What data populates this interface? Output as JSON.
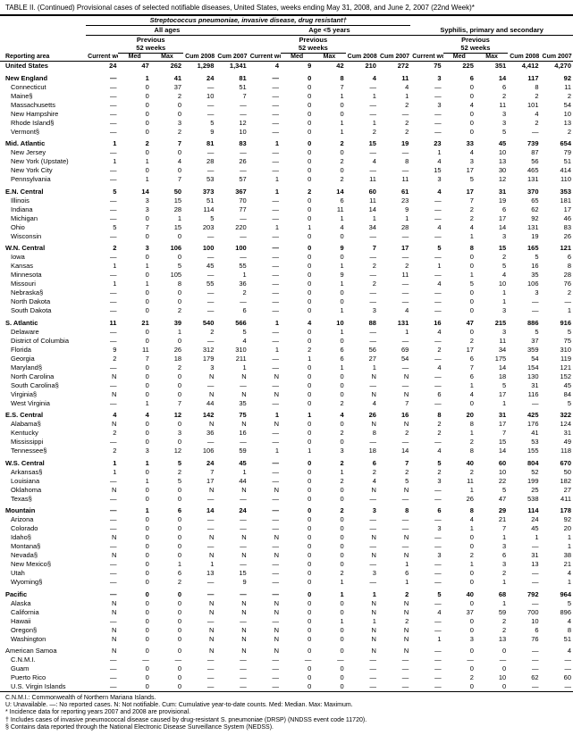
{
  "title": "TABLE II. (Continued) Provisional cases of selected notifiable diseases, United States, weeks ending May 31, 2008, and June 2, 2007 (22nd Week)*",
  "section1_title": "Streptococcus pneumoniae, invasive disease, drug resistant†",
  "sub_allages": "All ages",
  "sub_under5": "Age <5 years",
  "section2_title": "Syphilis, primary and secondary",
  "prev_label": "Previous",
  "weeks_label": "52 weeks",
  "col_area": "Reporting area",
  "col_current": "Current week",
  "col_med": "Med",
  "col_max": "Max",
  "col_cum08": "Cum 2008",
  "col_cum07": "Cum 2007",
  "footnotes": [
    "C.N.M.I.: Commonwealth of Northern Mariana Islands.",
    "U: Unavailable.   —: No reported cases.   N: Not notifiable.   Cum: Cumulative year-to-date counts.   Med: Median.   Max: Maximum.",
    "* Incidence data for reporting years 2007 and 2008 are provisional.",
    "† Includes cases of invasive pneumococcal disease caused by drug-resistant S. pneumoniae (DRSP) (NNDSS event code 11720).",
    "§ Contains data reported through the National Electronic Disease Surveillance System (NEDSS)."
  ],
  "rows": [
    {
      "area": "United States",
      "bold": true,
      "group": true,
      "v": [
        "24",
        "47",
        "262",
        "1,298",
        "1,341",
        "4",
        "9",
        "42",
        "210",
        "272",
        "75",
        "225",
        "351",
        "4,412",
        "4,270"
      ]
    },
    {
      "area": "New England",
      "bold": true,
      "group": true,
      "v": [
        "—",
        "1",
        "41",
        "24",
        "81",
        "—",
        "0",
        "8",
        "4",
        "11",
        "3",
        "6",
        "14",
        "117",
        "92"
      ]
    },
    {
      "area": "Connecticut",
      "v": [
        "—",
        "0",
        "37",
        "—",
        "51",
        "—",
        "0",
        "7",
        "—",
        "4",
        "—",
        "0",
        "6",
        "8",
        "11"
      ]
    },
    {
      "area": "Maine§",
      "v": [
        "—",
        "0",
        "2",
        "10",
        "7",
        "—",
        "0",
        "1",
        "1",
        "1",
        "—",
        "0",
        "2",
        "2",
        "2"
      ]
    },
    {
      "area": "Massachusetts",
      "v": [
        "—",
        "0",
        "0",
        "—",
        "—",
        "—",
        "0",
        "0",
        "—",
        "2",
        "3",
        "4",
        "11",
        "101",
        "54"
      ]
    },
    {
      "area": "New Hampshire",
      "v": [
        "—",
        "0",
        "0",
        "—",
        "—",
        "—",
        "0",
        "0",
        "—",
        "—",
        "—",
        "0",
        "3",
        "4",
        "10"
      ]
    },
    {
      "area": "Rhode Island§",
      "v": [
        "—",
        "0",
        "3",
        "5",
        "12",
        "—",
        "0",
        "1",
        "1",
        "2",
        "—",
        "0",
        "3",
        "2",
        "13"
      ]
    },
    {
      "area": "Vermont§",
      "v": [
        "—",
        "0",
        "2",
        "9",
        "10",
        "—",
        "0",
        "1",
        "2",
        "2",
        "—",
        "0",
        "5",
        "—",
        "2"
      ]
    },
    {
      "area": "Mid. Atlantic",
      "bold": true,
      "group": true,
      "v": [
        "1",
        "2",
        "7",
        "81",
        "83",
        "1",
        "0",
        "2",
        "15",
        "19",
        "23",
        "33",
        "45",
        "739",
        "654"
      ]
    },
    {
      "area": "New Jersey",
      "v": [
        "—",
        "0",
        "0",
        "—",
        "—",
        "—",
        "0",
        "0",
        "—",
        "—",
        "1",
        "4",
        "10",
        "87",
        "79"
      ]
    },
    {
      "area": "New York (Upstate)",
      "v": [
        "1",
        "1",
        "4",
        "28",
        "26",
        "—",
        "0",
        "2",
        "4",
        "8",
        "4",
        "3",
        "13",
        "56",
        "51"
      ]
    },
    {
      "area": "New York City",
      "v": [
        "—",
        "0",
        "0",
        "—",
        "—",
        "—",
        "0",
        "0",
        "—",
        "—",
        "15",
        "17",
        "30",
        "465",
        "414"
      ]
    },
    {
      "area": "Pennsylvania",
      "v": [
        "—",
        "1",
        "7",
        "53",
        "57",
        "1",
        "0",
        "2",
        "11",
        "11",
        "3",
        "5",
        "12",
        "131",
        "110"
      ]
    },
    {
      "area": "E.N. Central",
      "bold": true,
      "group": true,
      "v": [
        "5",
        "14",
        "50",
        "373",
        "367",
        "1",
        "2",
        "14",
        "60",
        "61",
        "4",
        "17",
        "31",
        "370",
        "353"
      ]
    },
    {
      "area": "Illinois",
      "v": [
        "—",
        "3",
        "15",
        "51",
        "70",
        "—",
        "0",
        "6",
        "11",
        "23",
        "—",
        "7",
        "19",
        "65",
        "181"
      ]
    },
    {
      "area": "Indiana",
      "v": [
        "—",
        "3",
        "28",
        "114",
        "77",
        "—",
        "0",
        "11",
        "14",
        "9",
        "—",
        "2",
        "6",
        "62",
        "17"
      ]
    },
    {
      "area": "Michigan",
      "v": [
        "—",
        "0",
        "1",
        "5",
        "—",
        "—",
        "0",
        "1",
        "1",
        "1",
        "—",
        "2",
        "17",
        "92",
        "46"
      ]
    },
    {
      "area": "Ohio",
      "v": [
        "5",
        "7",
        "15",
        "203",
        "220",
        "1",
        "1",
        "4",
        "34",
        "28",
        "4",
        "4",
        "14",
        "131",
        "83"
      ]
    },
    {
      "area": "Wisconsin",
      "v": [
        "—",
        "0",
        "0",
        "—",
        "—",
        "—",
        "0",
        "0",
        "—",
        "—",
        "—",
        "1",
        "3",
        "19",
        "26"
      ]
    },
    {
      "area": "W.N. Central",
      "bold": true,
      "group": true,
      "v": [
        "2",
        "3",
        "106",
        "100",
        "100",
        "—",
        "0",
        "9",
        "7",
        "17",
        "5",
        "8",
        "15",
        "165",
        "121"
      ]
    },
    {
      "area": "Iowa",
      "v": [
        "—",
        "0",
        "0",
        "—",
        "—",
        "—",
        "0",
        "0",
        "—",
        "—",
        "—",
        "0",
        "2",
        "5",
        "6"
      ]
    },
    {
      "area": "Kansas",
      "v": [
        "1",
        "1",
        "5",
        "45",
        "55",
        "—",
        "0",
        "1",
        "2",
        "2",
        "1",
        "0",
        "5",
        "16",
        "8"
      ]
    },
    {
      "area": "Minnesota",
      "v": [
        "—",
        "0",
        "105",
        "—",
        "1",
        "—",
        "0",
        "9",
        "—",
        "11",
        "—",
        "1",
        "4",
        "35",
        "28"
      ]
    },
    {
      "area": "Missouri",
      "v": [
        "1",
        "1",
        "8",
        "55",
        "36",
        "—",
        "0",
        "1",
        "2",
        "—",
        "4",
        "5",
        "10",
        "106",
        "76"
      ]
    },
    {
      "area": "Nebraska§",
      "v": [
        "—",
        "0",
        "0",
        "—",
        "2",
        "—",
        "0",
        "0",
        "—",
        "—",
        "—",
        "0",
        "1",
        "3",
        "2"
      ]
    },
    {
      "area": "North Dakota",
      "v": [
        "—",
        "0",
        "0",
        "—",
        "—",
        "—",
        "0",
        "0",
        "—",
        "—",
        "—",
        "0",
        "1",
        "—",
        "—"
      ]
    },
    {
      "area": "South Dakota",
      "v": [
        "—",
        "0",
        "2",
        "—",
        "6",
        "—",
        "0",
        "1",
        "3",
        "4",
        "—",
        "0",
        "3",
        "—",
        "1"
      ]
    },
    {
      "area": "S. Atlantic",
      "bold": true,
      "group": true,
      "v": [
        "11",
        "21",
        "39",
        "540",
        "566",
        "1",
        "4",
        "10",
        "88",
        "131",
        "16",
        "47",
        "215",
        "886",
        "916"
      ]
    },
    {
      "area": "Delaware",
      "v": [
        "—",
        "0",
        "1",
        "2",
        "5",
        "—",
        "0",
        "1",
        "—",
        "1",
        "4",
        "0",
        "3",
        "5",
        "5"
      ]
    },
    {
      "area": "District of Columbia",
      "v": [
        "—",
        "0",
        "0",
        "—",
        "4",
        "—",
        "0",
        "0",
        "—",
        "—",
        "—",
        "2",
        "11",
        "37",
        "75"
      ]
    },
    {
      "area": "Florida",
      "v": [
        "9",
        "11",
        "26",
        "312",
        "310",
        "1",
        "2",
        "6",
        "56",
        "69",
        "2",
        "17",
        "34",
        "359",
        "310"
      ]
    },
    {
      "area": "Georgia",
      "v": [
        "2",
        "7",
        "18",
        "179",
        "211",
        "—",
        "1",
        "6",
        "27",
        "54",
        "—",
        "6",
        "175",
        "54",
        "119"
      ]
    },
    {
      "area": "Maryland§",
      "v": [
        "—",
        "0",
        "2",
        "3",
        "1",
        "—",
        "0",
        "1",
        "1",
        "—",
        "4",
        "7",
        "14",
        "154",
        "121"
      ]
    },
    {
      "area": "North Carolina",
      "v": [
        "N",
        "0",
        "0",
        "N",
        "N",
        "N",
        "0",
        "0",
        "N",
        "N",
        "—",
        "6",
        "18",
        "130",
        "152"
      ]
    },
    {
      "area": "South Carolina§",
      "v": [
        "—",
        "0",
        "0",
        "—",
        "—",
        "—",
        "0",
        "0",
        "—",
        "—",
        "—",
        "1",
        "5",
        "31",
        "45"
      ]
    },
    {
      "area": "Virginia§",
      "v": [
        "N",
        "0",
        "0",
        "N",
        "N",
        "N",
        "0",
        "0",
        "N",
        "N",
        "6",
        "4",
        "17",
        "116",
        "84"
      ]
    },
    {
      "area": "West Virginia",
      "v": [
        "—",
        "1",
        "7",
        "44",
        "35",
        "—",
        "0",
        "2",
        "4",
        "7",
        "—",
        "0",
        "1",
        "—",
        "5"
      ]
    },
    {
      "area": "E.S. Central",
      "bold": true,
      "group": true,
      "v": [
        "4",
        "4",
        "12",
        "142",
        "75",
        "1",
        "1",
        "4",
        "26",
        "16",
        "8",
        "20",
        "31",
        "425",
        "322"
      ]
    },
    {
      "area": "Alabama§",
      "v": [
        "N",
        "0",
        "0",
        "N",
        "N",
        "N",
        "0",
        "0",
        "N",
        "N",
        "2",
        "8",
        "17",
        "176",
        "124"
      ]
    },
    {
      "area": "Kentucky",
      "v": [
        "2",
        "0",
        "3",
        "36",
        "16",
        "—",
        "0",
        "2",
        "8",
        "2",
        "2",
        "1",
        "7",
        "41",
        "31"
      ]
    },
    {
      "area": "Mississippi",
      "v": [
        "—",
        "0",
        "0",
        "—",
        "—",
        "—",
        "0",
        "0",
        "—",
        "—",
        "—",
        "2",
        "15",
        "53",
        "49"
      ]
    },
    {
      "area": "Tennessee§",
      "v": [
        "2",
        "3",
        "12",
        "106",
        "59",
        "1",
        "1",
        "3",
        "18",
        "14",
        "4",
        "8",
        "14",
        "155",
        "118"
      ]
    },
    {
      "area": "W.S. Central",
      "bold": true,
      "group": true,
      "v": [
        "1",
        "1",
        "5",
        "24",
        "45",
        "—",
        "0",
        "2",
        "6",
        "7",
        "5",
        "40",
        "60",
        "804",
        "670"
      ]
    },
    {
      "area": "Arkansas§",
      "v": [
        "1",
        "0",
        "2",
        "7",
        "1",
        "—",
        "0",
        "1",
        "2",
        "2",
        "2",
        "2",
        "10",
        "52",
        "50"
      ]
    },
    {
      "area": "Louisiana",
      "v": [
        "—",
        "1",
        "5",
        "17",
        "44",
        "—",
        "0",
        "2",
        "4",
        "5",
        "3",
        "11",
        "22",
        "199",
        "182"
      ]
    },
    {
      "area": "Oklahoma",
      "v": [
        "N",
        "0",
        "0",
        "N",
        "N",
        "N",
        "0",
        "0",
        "N",
        "N",
        "—",
        "1",
        "5",
        "25",
        "27"
      ]
    },
    {
      "area": "Texas§",
      "v": [
        "—",
        "0",
        "0",
        "—",
        "—",
        "—",
        "0",
        "0",
        "—",
        "—",
        "—",
        "26",
        "47",
        "538",
        "411"
      ]
    },
    {
      "area": "Mountain",
      "bold": true,
      "group": true,
      "v": [
        "—",
        "1",
        "6",
        "14",
        "24",
        "—",
        "0",
        "2",
        "3",
        "8",
        "6",
        "8",
        "29",
        "114",
        "178"
      ]
    },
    {
      "area": "Arizona",
      "v": [
        "—",
        "0",
        "0",
        "—",
        "—",
        "—",
        "0",
        "0",
        "—",
        "—",
        "—",
        "4",
        "21",
        "24",
        "92"
      ]
    },
    {
      "area": "Colorado",
      "v": [
        "—",
        "0",
        "0",
        "—",
        "—",
        "—",
        "0",
        "0",
        "—",
        "—",
        "3",
        "1",
        "7",
        "45",
        "20"
      ]
    },
    {
      "area": "Idaho§",
      "v": [
        "N",
        "0",
        "0",
        "N",
        "N",
        "N",
        "0",
        "0",
        "N",
        "N",
        "—",
        "0",
        "1",
        "1",
        "1"
      ]
    },
    {
      "area": "Montana§",
      "v": [
        "—",
        "0",
        "0",
        "—",
        "—",
        "—",
        "0",
        "0",
        "—",
        "—",
        "—",
        "0",
        "3",
        "—",
        "1"
      ]
    },
    {
      "area": "Nevada§",
      "v": [
        "N",
        "0",
        "0",
        "N",
        "N",
        "N",
        "0",
        "0",
        "N",
        "N",
        "3",
        "2",
        "6",
        "31",
        "38"
      ]
    },
    {
      "area": "New Mexico§",
      "v": [
        "—",
        "0",
        "1",
        "1",
        "—",
        "—",
        "0",
        "0",
        "—",
        "1",
        "—",
        "1",
        "3",
        "13",
        "21"
      ]
    },
    {
      "area": "Utah",
      "v": [
        "—",
        "0",
        "6",
        "13",
        "15",
        "—",
        "0",
        "2",
        "3",
        "6",
        "—",
        "0",
        "2",
        "—",
        "4"
      ]
    },
    {
      "area": "Wyoming§",
      "v": [
        "—",
        "0",
        "2",
        "—",
        "9",
        "—",
        "0",
        "1",
        "—",
        "1",
        "—",
        "0",
        "1",
        "—",
        "1"
      ]
    },
    {
      "area": "Pacific",
      "bold": true,
      "group": true,
      "v": [
        "—",
        "0",
        "0",
        "—",
        "—",
        "—",
        "0",
        "1",
        "1",
        "2",
        "5",
        "40",
        "68",
        "792",
        "964"
      ]
    },
    {
      "area": "Alaska",
      "v": [
        "N",
        "0",
        "0",
        "N",
        "N",
        "N",
        "0",
        "0",
        "N",
        "N",
        "—",
        "0",
        "1",
        "—",
        "5"
      ]
    },
    {
      "area": "California",
      "v": [
        "N",
        "0",
        "0",
        "N",
        "N",
        "N",
        "0",
        "0",
        "N",
        "N",
        "4",
        "37",
        "59",
        "700",
        "896"
      ]
    },
    {
      "area": "Hawaii",
      "v": [
        "—",
        "0",
        "0",
        "—",
        "—",
        "—",
        "0",
        "1",
        "1",
        "2",
        "—",
        "0",
        "2",
        "10",
        "4"
      ]
    },
    {
      "area": "Oregon§",
      "v": [
        "N",
        "0",
        "0",
        "N",
        "N",
        "N",
        "0",
        "0",
        "N",
        "N",
        "—",
        "0",
        "2",
        "6",
        "8"
      ]
    },
    {
      "area": "Washington",
      "v": [
        "N",
        "0",
        "0",
        "N",
        "N",
        "N",
        "0",
        "0",
        "N",
        "N",
        "1",
        "3",
        "13",
        "76",
        "51"
      ]
    },
    {
      "area": "American Samoa",
      "bold": false,
      "group": true,
      "v": [
        "N",
        "0",
        "0",
        "N",
        "N",
        "N",
        "0",
        "0",
        "N",
        "N",
        "—",
        "0",
        "0",
        "—",
        "4"
      ]
    },
    {
      "area": "C.N.M.I.",
      "v": [
        "—",
        "—",
        "—",
        "—",
        "—",
        "—",
        "—",
        "—",
        "—",
        "—",
        "—",
        "—",
        "—",
        "—",
        "—"
      ]
    },
    {
      "area": "Guam",
      "v": [
        "—",
        "0",
        "0",
        "—",
        "—",
        "—",
        "0",
        "0",
        "—",
        "—",
        "—",
        "0",
        "0",
        "—",
        "—"
      ]
    },
    {
      "area": "Puerto Rico",
      "v": [
        "—",
        "0",
        "0",
        "—",
        "—",
        "—",
        "0",
        "0",
        "—",
        "—",
        "—",
        "2",
        "10",
        "62",
        "60"
      ]
    },
    {
      "area": "U.S. Virgin Islands",
      "v": [
        "—",
        "0",
        "0",
        "—",
        "—",
        "—",
        "0",
        "0",
        "—",
        "—",
        "—",
        "0",
        "0",
        "—",
        "—"
      ]
    }
  ]
}
